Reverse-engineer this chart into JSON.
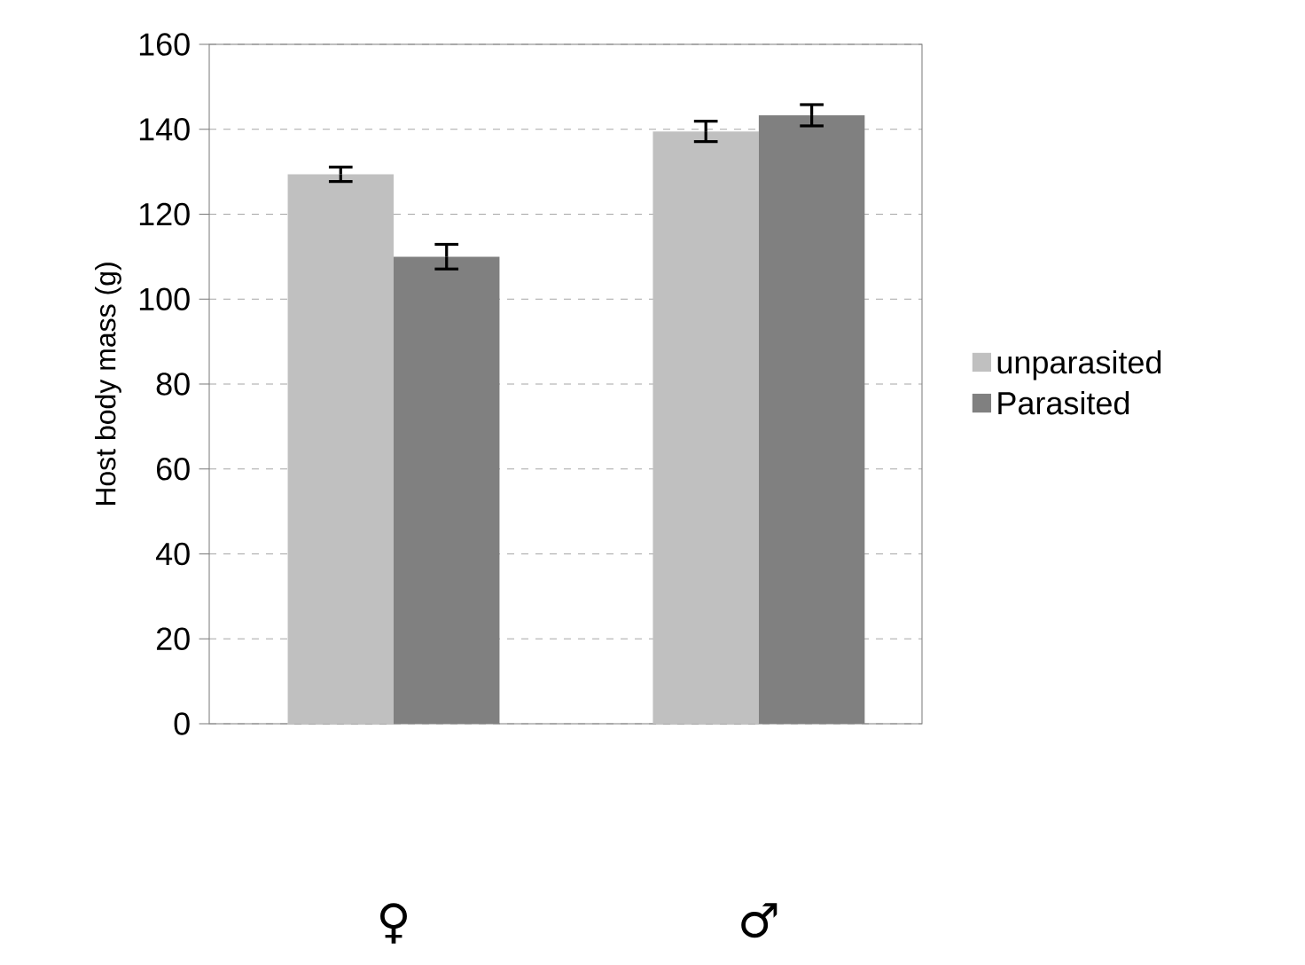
{
  "chart_data": {
    "type": "bar",
    "ylabel": "Host body mass (g)",
    "categories": [
      "♀",
      "♂"
    ],
    "series": [
      {
        "name": "unparasited",
        "color": "#c0c0c0",
        "values": [
          129.4,
          139.5
        ],
        "errors": [
          1.7,
          2.4
        ]
      },
      {
        "name": "Parasited",
        "color": "#808080",
        "values": [
          110,
          143.3
        ],
        "errors": [
          2.9,
          2.5
        ]
      }
    ],
    "ylim": [
      0,
      160
    ],
    "yticks": [
      0,
      20,
      40,
      60,
      80,
      100,
      120,
      140,
      160
    ],
    "grid": "y",
    "legend": "right"
  }
}
